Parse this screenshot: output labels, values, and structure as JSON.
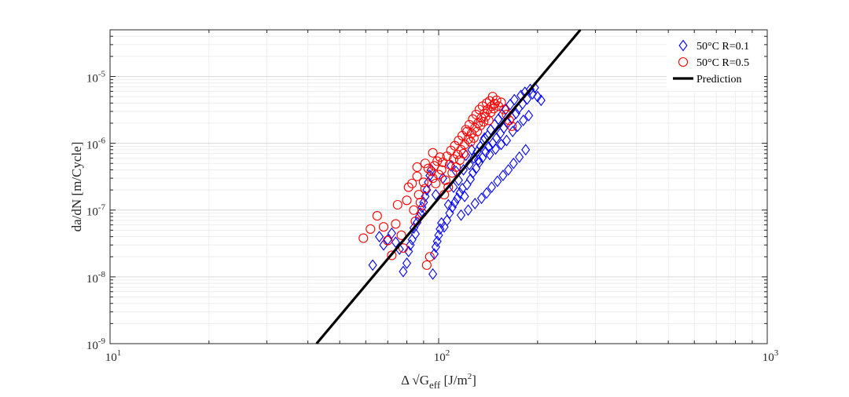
{
  "chart_data": {
    "type": "scatter",
    "title": "",
    "xlabel": {
      "base": "Δ √G",
      "sub": "eff",
      "unit": " [J/m",
      "sup": "2",
      "close": "]"
    },
    "ylabel": "da/dN [m/Cycle]",
    "x_scale": "log",
    "y_scale": "log",
    "xlim": [
      10,
      1000
    ],
    "ylim": [
      1e-09,
      5e-05
    ],
    "x_ticks": [
      {
        "value": 10,
        "base": "10",
        "exp": "1"
      },
      {
        "value": 100,
        "base": "10",
        "exp": "2"
      },
      {
        "value": 1000,
        "base": "10",
        "exp": "3"
      }
    ],
    "y_ticks": [
      {
        "value": 1e-09,
        "base": "10",
        "exp": "-9"
      },
      {
        "value": 1e-08,
        "base": "10",
        "exp": "-8"
      },
      {
        "value": 1e-07,
        "base": "10",
        "exp": "-7"
      },
      {
        "value": 1e-06,
        "base": "10",
        "exp": "-6"
      },
      {
        "value": 1e-05,
        "base": "10",
        "exp": "-5"
      }
    ],
    "grid": true,
    "legend_position": "top-right",
    "series": [
      {
        "name": "50°C R=0.1",
        "marker": "diamond",
        "color": "#0000ff",
        "points": [
          [
            63,
            1.5e-08
          ],
          [
            66,
            4e-08
          ],
          [
            68,
            3e-08
          ],
          [
            70,
            3.6e-08
          ],
          [
            72,
            4.5e-08
          ],
          [
            74,
            3.3e-08
          ],
          [
            76,
            2.6e-08
          ],
          [
            78,
            1.2e-08
          ],
          [
            80,
            1.6e-08
          ],
          [
            81,
            2.4e-08
          ],
          [
            82,
            3e-08
          ],
          [
            83,
            3.6e-08
          ],
          [
            84,
            5.4e-08
          ],
          [
            85,
            4.4e-08
          ],
          [
            86,
            6.5e-08
          ],
          [
            87,
            7.8e-08
          ],
          [
            88,
            9e-08
          ],
          [
            89,
            1.1e-07
          ],
          [
            90,
            1.3e-07
          ],
          [
            91,
            1.6e-07
          ],
          [
            92,
            2e-07
          ],
          [
            93,
            2.6e-07
          ],
          [
            94,
            3.3e-07
          ],
          [
            95,
            4e-07
          ],
          [
            96,
            1.1e-08
          ],
          [
            97,
            2.2e-08
          ],
          [
            98,
            2.8e-08
          ],
          [
            99,
            3.4e-08
          ],
          [
            100,
            4.2e-08
          ],
          [
            101,
            5.2e-08
          ],
          [
            102,
            6.4e-08
          ],
          [
            104,
            5.6e-08
          ],
          [
            106,
            7e-08
          ],
          [
            107,
            1.2e-07
          ],
          [
            108,
            9e-08
          ],
          [
            110,
            1.1e-07
          ],
          [
            111,
            2.2e-07
          ],
          [
            112,
            1.3e-07
          ],
          [
            114,
            1.5e-07
          ],
          [
            115,
            2.8e-07
          ],
          [
            116,
            1.8e-07
          ],
          [
            118,
            2.1e-07
          ],
          [
            119,
            4e-07
          ],
          [
            120,
            1.6e-07
          ],
          [
            122,
            2.4e-07
          ],
          [
            124,
            4.8e-07
          ],
          [
            125,
            2.9e-07
          ],
          [
            127,
            3.6e-07
          ],
          [
            128,
            6e-07
          ],
          [
            130,
            4.2e-07
          ],
          [
            131,
            7.5e-07
          ],
          [
            133,
            5.2e-07
          ],
          [
            134,
            9e-07
          ],
          [
            136,
            6.1e-07
          ],
          [
            137,
            1.1e-06
          ],
          [
            139,
            7.4e-07
          ],
          [
            141,
            1.3e-06
          ],
          [
            142,
            8.8e-07
          ],
          [
            144,
            1.6e-06
          ],
          [
            146,
            1e-06
          ],
          [
            148,
            1.9e-06
          ],
          [
            150,
            1.2e-06
          ],
          [
            152,
            2.3e-06
          ],
          [
            154,
            1.4e-06
          ],
          [
            156,
            2.7e-06
          ],
          [
            158,
            1.7e-06
          ],
          [
            160,
            3.2e-06
          ],
          [
            162,
            2e-06
          ],
          [
            165,
            3.8e-06
          ],
          [
            167,
            2.4e-06
          ],
          [
            170,
            4.5e-06
          ],
          [
            172,
            2.8e-06
          ],
          [
            175,
            3.3e-06
          ],
          [
            178,
            5.2e-06
          ],
          [
            180,
            3.9e-06
          ],
          [
            183,
            5.8e-06
          ],
          [
            186,
            4.6e-06
          ],
          [
            190,
            6.4e-06
          ],
          [
            193,
            5.5e-06
          ],
          [
            196,
            6.8e-06
          ],
          [
            200,
            5e-06
          ],
          [
            205,
            4.4e-06
          ],
          [
            98,
            1.7e-07
          ],
          [
            103,
            3e-07
          ],
          [
            109,
            4.6e-07
          ],
          [
            113,
            3.8e-07
          ],
          [
            121,
            6.6e-07
          ],
          [
            126,
            8e-07
          ],
          [
            132,
            5.6e-07
          ],
          [
            138,
            1.2e-06
          ],
          [
            143,
            6.8e-07
          ],
          [
            149,
            8.2e-07
          ],
          [
            155,
            9.6e-07
          ],
          [
            161,
            1.1e-06
          ],
          [
            168,
            1.5e-06
          ],
          [
            174,
            1.8e-06
          ],
          [
            181,
            2.2e-06
          ],
          [
            188,
            2.6e-06
          ],
          [
            117,
            8.4e-08
          ],
          [
            123,
            1e-07
          ],
          [
            129,
            1.25e-07
          ],
          [
            135,
            1.5e-07
          ],
          [
            140,
            1.8e-07
          ],
          [
            145,
            2.2e-07
          ],
          [
            151,
            2.7e-07
          ],
          [
            157,
            3.3e-07
          ],
          [
            163,
            4e-07
          ],
          [
            169,
            5e-07
          ],
          [
            176,
            6.2e-07
          ],
          [
            184,
            8e-07
          ]
        ]
      },
      {
        "name": "50°C R=0.5",
        "marker": "circle",
        "color": "#ff0000",
        "points": [
          [
            59,
            3.8e-08
          ],
          [
            62,
            5.2e-08
          ],
          [
            65,
            8.2e-08
          ],
          [
            68,
            5.6e-08
          ],
          [
            70,
            3.5e-08
          ],
          [
            72,
            2.1e-08
          ],
          [
            74,
            6.2e-08
          ],
          [
            75,
            1.2e-07
          ],
          [
            77,
            4.2e-08
          ],
          [
            78,
            2.7e-08
          ],
          [
            80,
            1.4e-07
          ],
          [
            81,
            2.2e-07
          ],
          [
            83,
            2.5e-07
          ],
          [
            84,
            1e-07
          ],
          [
            85,
            6.8e-08
          ],
          [
            86,
            3.2e-07
          ],
          [
            87,
            1.7e-07
          ],
          [
            88,
            1.3e-07
          ],
          [
            89,
            9e-08
          ],
          [
            90,
            2.6e-07
          ],
          [
            91,
            2.1e-07
          ],
          [
            92,
            1.5e-08
          ],
          [
            93,
            4.2e-07
          ],
          [
            94,
            2e-08
          ],
          [
            95,
            3.8e-07
          ],
          [
            96,
            3e-07
          ],
          [
            97,
            4.6e-07
          ],
          [
            98,
            2.5e-07
          ],
          [
            99,
            5.4e-07
          ],
          [
            100,
            3.4e-07
          ],
          [
            102,
            4e-07
          ],
          [
            103,
            5.2e-07
          ],
          [
            105,
            2.8e-07
          ],
          [
            106,
            6.4e-07
          ],
          [
            108,
            4.8e-07
          ],
          [
            109,
            7.8e-07
          ],
          [
            111,
            5.8e-07
          ],
          [
            112,
            9.2e-07
          ],
          [
            114,
            6.8e-07
          ],
          [
            115,
            1.1e-06
          ],
          [
            117,
            8e-07
          ],
          [
            118,
            1.3e-06
          ],
          [
            120,
            9.6e-07
          ],
          [
            121,
            1.6e-06
          ],
          [
            123,
            1.15e-06
          ],
          [
            124,
            1.9e-06
          ],
          [
            126,
            1.4e-06
          ],
          [
            127,
            2.3e-06
          ],
          [
            129,
            1.7e-06
          ],
          [
            130,
            2.7e-06
          ],
          [
            132,
            2e-06
          ],
          [
            133,
            3.2e-06
          ],
          [
            135,
            2.4e-06
          ],
          [
            136,
            3.6e-06
          ],
          [
            138,
            2.8e-06
          ],
          [
            140,
            4e-06
          ],
          [
            141,
            3.2e-06
          ],
          [
            143,
            4.3e-06
          ],
          [
            145,
            3.6e-06
          ],
          [
            146,
            5e-06
          ],
          [
            148,
            3.9e-06
          ],
          [
            150,
            4.4e-06
          ],
          [
            152,
            3.6e-06
          ],
          [
            155,
            4.1e-06
          ],
          [
            158,
            3.2e-06
          ],
          [
            161,
            2.7e-06
          ],
          [
            164,
            2.2e-06
          ],
          [
            167,
            1.8e-06
          ],
          [
            104,
            1.7e-07
          ],
          [
            107,
            2.2e-07
          ],
          [
            110,
            3.6e-07
          ],
          [
            113,
            4.4e-07
          ],
          [
            116,
            5.6e-07
          ],
          [
            119,
            7e-07
          ],
          [
            122,
            1.5e-06
          ],
          [
            125,
            1.05e-06
          ],
          [
            128,
            1.2e-06
          ],
          [
            131,
            1.5e-06
          ],
          [
            134,
            1.85e-06
          ],
          [
            137,
            2.1e-06
          ],
          [
            139,
            2.5e-06
          ],
          [
            142,
            2.2e-06
          ],
          [
            144,
            2.9e-06
          ],
          [
            147,
            3.3e-06
          ],
          [
            101,
            6.2e-07
          ],
          [
            96,
            7.2e-07
          ],
          [
            91,
            5e-07
          ],
          [
            86,
            4.4e-07
          ]
        ]
      },
      {
        "name": "Prediction",
        "marker": "line",
        "color": "#000000",
        "points": [
          [
            42.5,
            1e-09
          ],
          [
            270,
            5e-05
          ]
        ]
      }
    ]
  }
}
